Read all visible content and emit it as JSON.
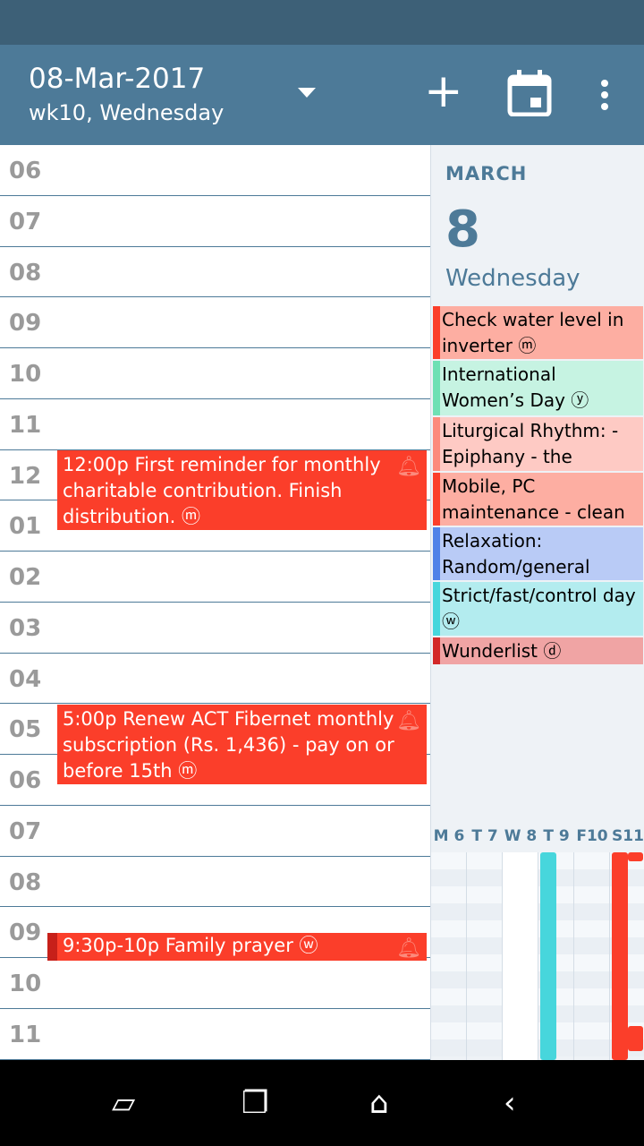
{
  "header": {
    "date": "08-Mar-2017",
    "subtitle": "wk10, Wednesday",
    "add_icon": "plus-icon",
    "today_icon": "calendar-icon",
    "menu_icon": "more-vert-icon"
  },
  "hours": [
    "06",
    "07",
    "08",
    "09",
    "10",
    "11",
    "12",
    "01",
    "02",
    "03",
    "04",
    "05",
    "06",
    "07",
    "08",
    "09",
    "10",
    "11"
  ],
  "events": [
    {
      "text": "12:00p First reminder for monthly charitable contribution. Finish distribution. ⓜ",
      "color": "#fb3e2a"
    },
    {
      "text": "5:00p Renew ACT Fibernet monthly subscription (Rs. 1,436) - pay on or before 15th ⓜ",
      "color": "#fb3e2a"
    },
    {
      "text": "9:30p-10p Family prayer ⓦ",
      "color": "#fb3e2a"
    }
  ],
  "side": {
    "month": "MARCH",
    "day": "8",
    "weekday": "Wednesday"
  },
  "allday": [
    {
      "text": "Check water level in inverter ⓜ",
      "bg": "#fdaea2",
      "bar": "#fb3e2a"
    },
    {
      "text": "International Women’s Day ⓨ",
      "bg": "#c6f3e2",
      "bar": "#6ee0b4"
    },
    {
      "text": "Liturgical Rhythm: - Epiphany - the",
      "bg": "#fecac4",
      "bar": "#fc8a7c"
    },
    {
      "text": "Mobile, PC maintenance - clean",
      "bg": "#fdaea2",
      "bar": "#fb3e2a"
    },
    {
      "text": "Relaxation: Random/general",
      "bg": "#b9cbf6",
      "bar": "#4f82e8"
    },
    {
      "text": "Strict/fast/control day  ⓦ",
      "bg": "#b3ecef",
      "bar": "#47d6dc"
    },
    {
      "text": "Wunderlist ⓓ",
      "bg": "#f0a4a4",
      "bar": "#d32828"
    }
  ],
  "week": [
    "M 6",
    "T 7",
    "W 8",
    "T 9",
    "F10",
    "S11"
  ],
  "nav": [
    "screen-rotate-icon",
    "recent-apps-icon",
    "home-icon",
    "back-icon"
  ]
}
